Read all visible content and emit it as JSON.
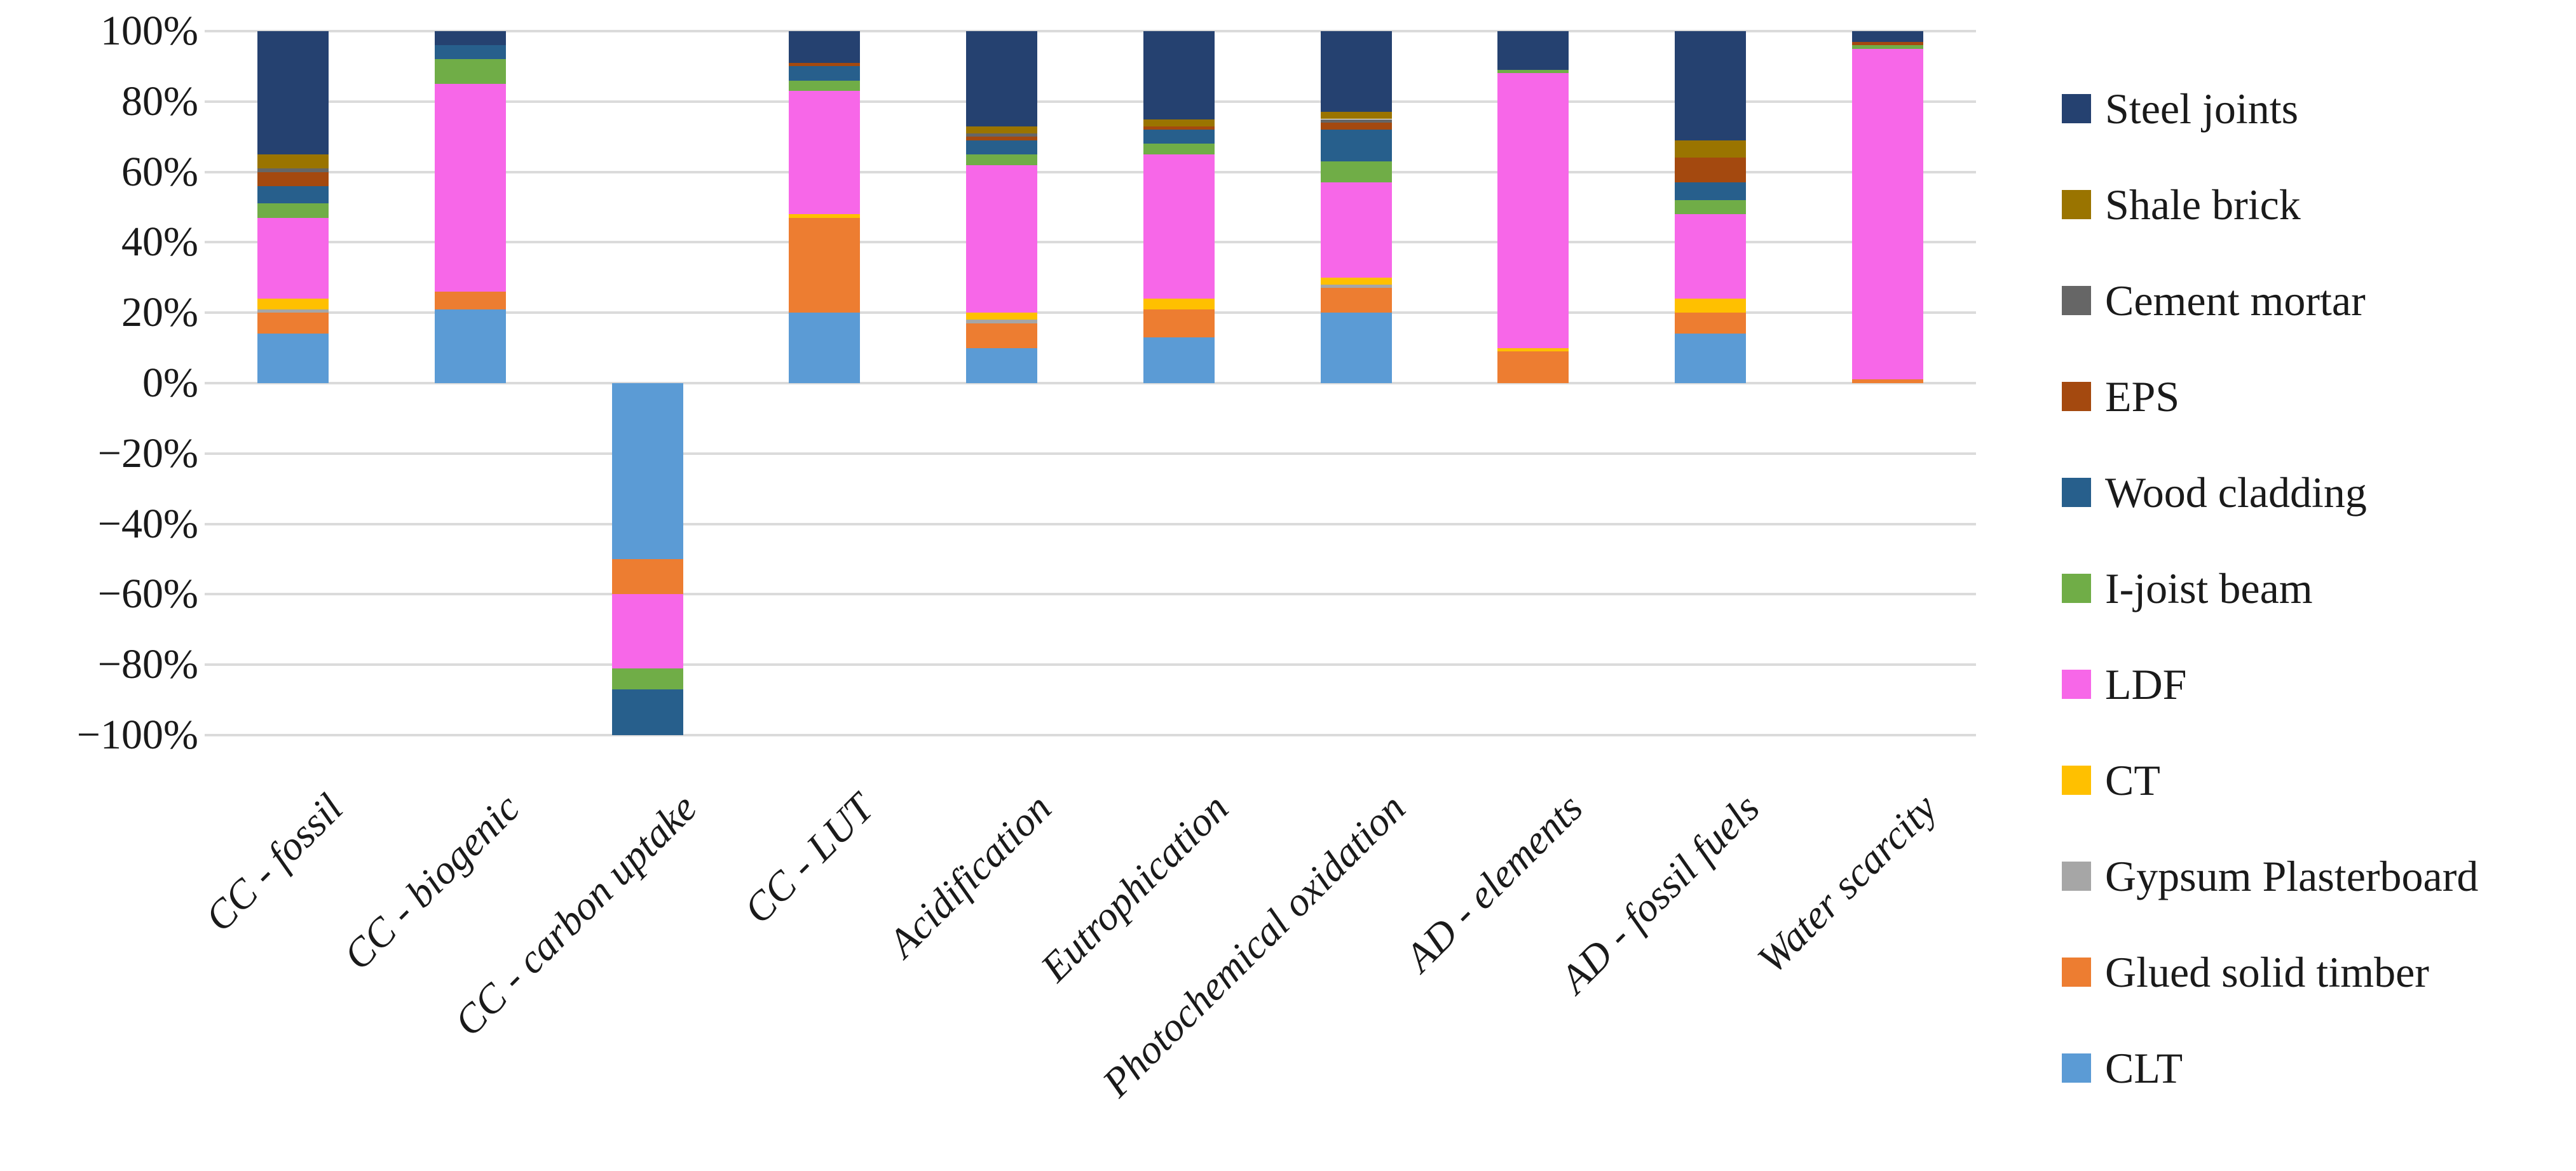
{
  "chart_data": {
    "type": "bar",
    "subtype": "100%-stacked-column",
    "title": "",
    "xlabel": "",
    "ylabel": "",
    "ylim": [
      -100,
      100
    ],
    "grid": true,
    "legend_position": "right",
    "y_ticks": [
      "100%",
      "80%",
      "60%",
      "40%",
      "20%",
      "0%",
      "−20%",
      "−40%",
      "−60%",
      "−80%",
      "−100%"
    ],
    "categories": [
      "CC - fossil",
      "CC - biogenic",
      "CC - carbon uptake",
      "CC - LUT",
      "Acidification",
      "Eutrophication",
      "Photochemical oxidation",
      "AD - elements",
      "AD - fossil fuels",
      "Water scarcity"
    ],
    "series_note": "values are percent of each column total; stack order is bottom-to-top; legend shows reverse order",
    "series": [
      {
        "name": "CLT",
        "color": "#5B9BD5",
        "values": [
          14,
          21,
          -50,
          20,
          10,
          13,
          20,
          0,
          14,
          0
        ]
      },
      {
        "name": "Glued solid timber",
        "color": "#ED7D31",
        "values": [
          6,
          5,
          -10,
          27,
          7,
          8,
          7,
          9,
          6,
          1
        ]
      },
      {
        "name": "Gypsum Plasterboard",
        "color": "#A6A6A6",
        "values": [
          1,
          0,
          0,
          0,
          1,
          0,
          1,
          0,
          0,
          0
        ]
      },
      {
        "name": "CT",
        "color": "#FFC000",
        "values": [
          3,
          0,
          0,
          1,
          2,
          3,
          2,
          1,
          4,
          0
        ]
      },
      {
        "name": "LDF",
        "color": "#F767E8",
        "values": [
          23,
          59,
          -21,
          35,
          42,
          41,
          27,
          78,
          24,
          94
        ]
      },
      {
        "name": "I-joist beam",
        "color": "#70AD47",
        "values": [
          4,
          7,
          -6,
          3,
          3,
          3,
          6,
          1,
          4,
          1
        ]
      },
      {
        "name": "Wood cladding",
        "color": "#275F8C",
        "values": [
          5,
          4,
          -13,
          4,
          4,
          4,
          9,
          0,
          5,
          0
        ]
      },
      {
        "name": "EPS",
        "color": "#A4490F",
        "values": [
          4,
          0,
          0,
          1,
          1,
          1,
          2,
          0,
          7,
          1
        ]
      },
      {
        "name": "Cement mortar",
        "color": "#666666",
        "values": [
          1,
          0,
          0,
          0,
          1,
          0,
          1,
          0,
          0,
          0
        ]
      },
      {
        "name": "Shale brick",
        "color": "#9A7400",
        "values": [
          4,
          0,
          0,
          0,
          2,
          2,
          2,
          0,
          5,
          0
        ]
      },
      {
        "name": "Steel joints",
        "color": "#254170",
        "values": [
          35,
          4,
          0,
          9,
          27,
          25,
          23,
          11,
          31,
          3
        ]
      }
    ],
    "legend_labels": [
      "Steel joints",
      "Shale brick",
      "Cement mortar",
      "EPS",
      "Wood cladding",
      "I-joist beam",
      "LDF",
      "CT",
      "Gypsum Plasterboard",
      "Glued solid timber",
      "CLT"
    ],
    "gridline_color": "#DBDBDB"
  }
}
